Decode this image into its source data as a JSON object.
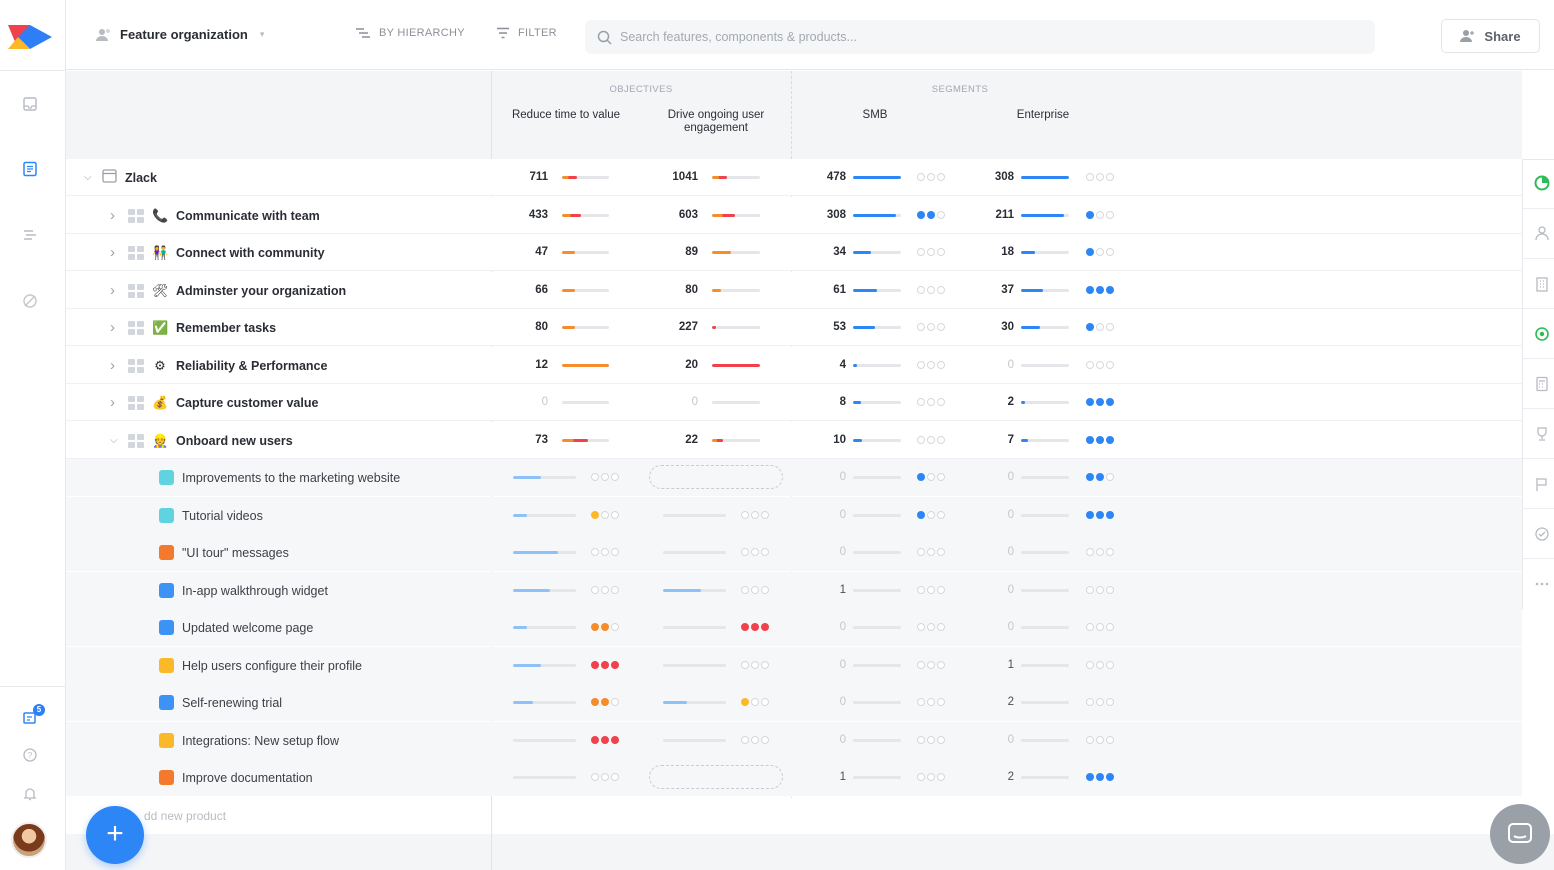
{
  "header": {
    "org_title": "Feature organization",
    "hierarchy_label": "BY HIERARCHY",
    "filter_label": "FILTER",
    "search_placeholder": "Search features, components & products...",
    "share_label": "Share"
  },
  "rail": {
    "notification_count": "5"
  },
  "columns": {
    "objectives_label": "OBJECTIVES",
    "segments_label": "SEGMENTS",
    "reduce_time": "Reduce time to value",
    "drive_engagement_1": "Drive ongoing user",
    "drive_engagement_2": "engagement",
    "smb": "SMB",
    "enterprise": "Enterprise"
  },
  "colors": {
    "blue": "#2d86f5",
    "red": "#f0414d",
    "orange": "#f58d2c",
    "yellow": "#fbb828",
    "light_blue": "#8ec1f8",
    "green": "#2dbb5a"
  },
  "rows": [
    {
      "name": "Zlack",
      "level": 0,
      "icon": "product-box-icon",
      "cols": [
        {
          "v": "711",
          "bar": 0.32,
          "c": "mix"
        },
        {
          "v": "1041",
          "bar": 0.32,
          "c": "mix"
        },
        {
          "v": "478",
          "bar": 1.0,
          "c": "blue",
          "dots": 0
        },
        {
          "v": "308",
          "bar": 1.0,
          "c": "blue",
          "dots": 0
        }
      ]
    },
    {
      "name": "Communicate with team",
      "level": 1,
      "icon": "phone-icon",
      "emoji": "📞",
      "cols": [
        {
          "v": "433",
          "bar": 0.4,
          "c": "mix"
        },
        {
          "v": "603",
          "bar": 0.48,
          "c": "mix"
        },
        {
          "v": "308",
          "bar": 0.9,
          "c": "blue",
          "dots": 2
        },
        {
          "v": "211",
          "bar": 0.9,
          "c": "blue",
          "dots": 1
        }
      ]
    },
    {
      "name": "Connect with community",
      "level": 1,
      "icon": "people-icon",
      "emoji": "👫",
      "cols": [
        {
          "v": "47",
          "bar": 0.28,
          "c": "orange"
        },
        {
          "v": "89",
          "bar": 0.4,
          "c": "orange"
        },
        {
          "v": "34",
          "bar": 0.38,
          "c": "blue",
          "dots": 0
        },
        {
          "v": "18",
          "bar": 0.3,
          "c": "blue",
          "dots": 1
        }
      ]
    },
    {
      "name": "Adminster your organization",
      "level": 1,
      "icon": "tools-icon",
      "emoji": "🛠",
      "cols": [
        {
          "v": "66",
          "bar": 0.28,
          "c": "orange"
        },
        {
          "v": "80",
          "bar": 0.18,
          "c": "orange"
        },
        {
          "v": "61",
          "bar": 0.5,
          "c": "blue",
          "dots": 0
        },
        {
          "v": "37",
          "bar": 0.45,
          "c": "blue",
          "dots": 3
        }
      ]
    },
    {
      "name": "Remember tasks",
      "level": 1,
      "icon": "checkbox-icon",
      "emoji": "✅",
      "cols": [
        {
          "v": "80",
          "bar": 0.28,
          "c": "orange"
        },
        {
          "v": "227",
          "bar": 0.06,
          "c": "red"
        },
        {
          "v": "53",
          "bar": 0.45,
          "c": "blue",
          "dots": 0
        },
        {
          "v": "30",
          "bar": 0.4,
          "c": "blue",
          "dots": 1
        }
      ]
    },
    {
      "name": "Reliability & Performance",
      "level": 1,
      "icon": "gear-icon",
      "emoji": "⚙",
      "cols": [
        {
          "v": "12",
          "bar": 1.0,
          "c": "orange"
        },
        {
          "v": "20",
          "bar": 1.0,
          "c": "red"
        },
        {
          "v": "4",
          "bar": 0.08,
          "c": "blue",
          "dots": 0
        },
        {
          "v": "0",
          "bar": 0,
          "c": "blue",
          "dots": 0
        }
      ]
    },
    {
      "name": "Capture customer value",
      "level": 1,
      "icon": "money-bag-icon",
      "emoji": "💰",
      "cols": [
        {
          "v": "0",
          "bar": 0,
          "c": "orange"
        },
        {
          "v": "0",
          "bar": 0,
          "c": "red"
        },
        {
          "v": "8",
          "bar": 0.16,
          "c": "blue",
          "dots": 0
        },
        {
          "v": "2",
          "bar": 0.05,
          "c": "blue",
          "dots": 3
        }
      ]
    },
    {
      "name": "Onboard new users",
      "level": 1,
      "icon": "person-icon",
      "emoji": "👷",
      "expanded": true,
      "cols": [
        {
          "v": "73",
          "bar": 0.55,
          "c": "mix"
        },
        {
          "v": "22",
          "bar": 0.22,
          "c": "mix"
        },
        {
          "v": "10",
          "bar": 0.18,
          "c": "blue",
          "dots": 0
        },
        {
          "v": "7",
          "bar": 0.15,
          "c": "blue",
          "dots": 3
        }
      ]
    },
    {
      "name": "Improvements to the marketing website",
      "level": 2,
      "color": "#5fd3e0",
      "cols": [
        {
          "bar": 0.45,
          "dots": 0
        },
        {
          "empty": true
        },
        {
          "v": "0",
          "bar": 0,
          "dots": 1
        },
        {
          "v": "0",
          "bar": 0,
          "dots": 2
        }
      ]
    },
    {
      "name": "Tutorial videos",
      "level": 2,
      "color": "#5fd3e0",
      "cols": [
        {
          "bar": 0.22,
          "dots": 1,
          "dotc": "yellow"
        },
        {
          "bar": 0,
          "dots": 0
        },
        {
          "v": "0",
          "bar": 0,
          "dots": 1
        },
        {
          "v": "0",
          "bar": 0,
          "dots": 3
        }
      ]
    },
    {
      "name": "\"UI tour\" messages",
      "level": 2,
      "color": "#f5792c",
      "cols": [
        {
          "bar": 0.72,
          "dots": 0
        },
        {
          "bar": 0,
          "dots": 0
        },
        {
          "v": "0",
          "bar": 0,
          "dots": 0
        },
        {
          "v": "0",
          "bar": 0,
          "dots": 0
        }
      ]
    },
    {
      "name": "In-app walkthrough widget",
      "level": 2,
      "color": "#3d93f5",
      "cols": [
        {
          "bar": 0.58,
          "dots": 0
        },
        {
          "bar": 0.6,
          "dots": 0
        },
        {
          "v": "1",
          "bar": 0,
          "dots": 0
        },
        {
          "v": "0",
          "bar": 0,
          "dots": 0
        }
      ]
    },
    {
      "name": "Updated welcome page",
      "level": 2,
      "color": "#3d93f5",
      "cols": [
        {
          "bar": 0.22,
          "dots": 2,
          "dotc": "orange"
        },
        {
          "bar": 0,
          "dots": 3,
          "dotc": "red"
        },
        {
          "v": "0",
          "bar": 0,
          "dots": 0
        },
        {
          "v": "0",
          "bar": 0,
          "dots": 0
        }
      ]
    },
    {
      "name": "Help users configure their profile",
      "level": 2,
      "color": "#fbb828",
      "cols": [
        {
          "bar": 0.45,
          "dots": 3,
          "dotc": "red"
        },
        {
          "bar": 0,
          "dots": 0
        },
        {
          "v": "0",
          "bar": 0,
          "dots": 0
        },
        {
          "v": "1",
          "bar": 0,
          "dots": 0
        }
      ]
    },
    {
      "name": "Self-renewing trial",
      "level": 2,
      "color": "#3d93f5",
      "cols": [
        {
          "bar": 0.32,
          "dots": 2,
          "dotc": "orange"
        },
        {
          "bar": 0.38,
          "dots": 1,
          "dotc": "yellow"
        },
        {
          "v": "0",
          "bar": 0,
          "dots": 0
        },
        {
          "v": "2",
          "bar": 0,
          "dots": 0
        }
      ]
    },
    {
      "name": "Integrations: New setup flow",
      "level": 2,
      "color": "#fbb828",
      "cols": [
        {
          "bar": 0,
          "dots": 3,
          "dotc": "red"
        },
        {
          "bar": 0,
          "dots": 0
        },
        {
          "v": "0",
          "bar": 0,
          "dots": 0
        },
        {
          "v": "0",
          "bar": 0,
          "dots": 0
        }
      ]
    },
    {
      "name": "Improve documentation",
      "level": 2,
      "color": "#f5792c",
      "cols": [
        {
          "bar": 0,
          "dots": 0
        },
        {
          "empty": true
        },
        {
          "v": "1",
          "bar": 0,
          "dots": 0
        },
        {
          "v": "2",
          "bar": 0,
          "dots": 3
        }
      ]
    }
  ],
  "add_row_label": "dd new product"
}
